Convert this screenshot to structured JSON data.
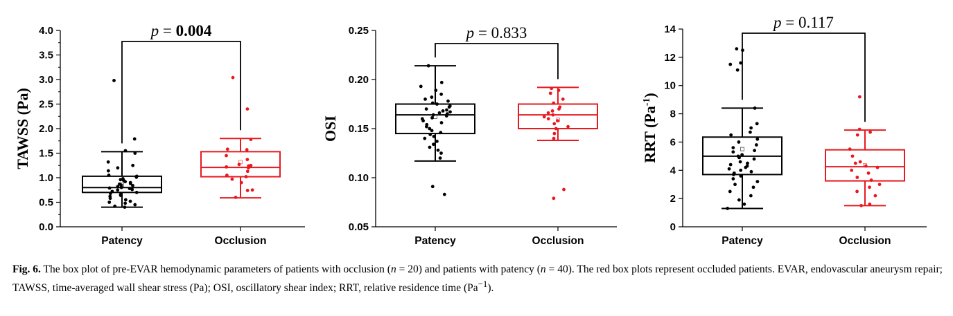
{
  "chart_data": [
    {
      "type": "box",
      "ylabel": "TAWSS (Pa)",
      "ylabel_base": "TAWSS (Pa)",
      "ylabel_sup": "",
      "ylabel_end": "",
      "ylim": [
        0.0,
        4.0
      ],
      "yticks": [
        0.0,
        0.5,
        1.0,
        1.5,
        2.0,
        2.5,
        3.0,
        3.5,
        4.0
      ],
      "ytick_labels": [
        "0.0",
        "0.5",
        "1.0",
        "1.5",
        "2.0",
        "2.5",
        "3.0",
        "3.5",
        "4.0"
      ],
      "minor_ticks": true,
      "categories": [
        "Patency",
        "Occlusion"
      ],
      "pvalue": {
        "prefix": "p",
        "eq": " = ",
        "value": "0.004",
        "bold": true
      },
      "boxes": [
        {
          "name": "Patency",
          "color": "#000000",
          "whisker_low": 0.4,
          "q1": 0.7,
          "median": 0.8,
          "q3": 1.03,
          "whisker_high": 1.53,
          "mean": 0.86,
          "points": [
            2.98,
            1.79,
            1.55,
            1.5,
            1.32,
            1.25,
            1.2,
            1.14,
            1.05,
            1.03,
            1.01,
            0.98,
            0.96,
            0.95,
            0.92,
            0.9,
            0.88,
            0.87,
            0.85,
            0.84,
            0.82,
            0.8,
            0.79,
            0.78,
            0.76,
            0.75,
            0.72,
            0.7,
            0.68,
            0.66,
            0.64,
            0.62,
            0.58,
            0.55,
            0.52,
            0.5,
            0.48,
            0.45,
            0.42,
            0.4
          ]
        },
        {
          "name": "Occlusion",
          "color": "#e8191f",
          "whisker_low": 0.59,
          "q1": 1.02,
          "median": 1.21,
          "q3": 1.53,
          "whisker_high": 1.8,
          "mean": 1.32,
          "points": [
            3.04,
            2.4,
            1.78,
            1.58,
            1.57,
            1.45,
            1.37,
            1.27,
            1.25,
            1.24,
            1.22,
            1.2,
            1.13,
            1.05,
            1.02,
            0.97,
            0.9,
            0.75,
            0.74,
            0.6
          ]
        }
      ]
    },
    {
      "type": "box",
      "ylabel": "OSI",
      "ylabel_base": "OSI",
      "ylabel_sup": "",
      "ylabel_end": "",
      "ylim": [
        0.05,
        0.25
      ],
      "yticks": [
        0.05,
        0.1,
        0.15,
        0.2,
        0.25
      ],
      "ytick_labels": [
        "0.05",
        "0.10",
        "0.15",
        "0.20",
        "0.25"
      ],
      "minor_ticks": false,
      "categories": [
        "Patency",
        "Occlusion"
      ],
      "pvalue": {
        "prefix": "p",
        "eq": " = ",
        "value": "0.833",
        "bold": false
      },
      "boxes": [
        {
          "name": "Patency",
          "color": "#000000",
          "whisker_low": 0.117,
          "q1": 0.145,
          "median": 0.164,
          "q3": 0.175,
          "whisker_high": 0.214,
          "mean": 0.162,
          "points": [
            0.214,
            0.197,
            0.193,
            0.189,
            0.185,
            0.182,
            0.18,
            0.178,
            0.176,
            0.175,
            0.173,
            0.172,
            0.17,
            0.169,
            0.168,
            0.167,
            0.166,
            0.165,
            0.164,
            0.163,
            0.161,
            0.16,
            0.158,
            0.156,
            0.154,
            0.152,
            0.15,
            0.148,
            0.146,
            0.144,
            0.142,
            0.14,
            0.137,
            0.134,
            0.131,
            0.128,
            0.125,
            0.12,
            0.091,
            0.083
          ]
        },
        {
          "name": "Occlusion",
          "color": "#e8191f",
          "whisker_low": 0.138,
          "q1": 0.15,
          "median": 0.164,
          "q3": 0.175,
          "whisker_high": 0.192,
          "mean": 0.159,
          "points": [
            0.191,
            0.189,
            0.186,
            0.18,
            0.176,
            0.172,
            0.17,
            0.168,
            0.166,
            0.164,
            0.162,
            0.16,
            0.158,
            0.155,
            0.152,
            0.15,
            0.145,
            0.14,
            0.088,
            0.079
          ]
        }
      ]
    },
    {
      "type": "box",
      "ylabel": "RRT (Pa-1)",
      "ylabel_base": "RRT (Pa",
      "ylabel_sup": "-1",
      "ylabel_end": ")",
      "ylim": [
        0,
        14
      ],
      "yticks": [
        0,
        2,
        4,
        6,
        8,
        10,
        12,
        14
      ],
      "ytick_labels": [
        "0",
        "2",
        "4",
        "6",
        "8",
        "10",
        "12",
        "14"
      ],
      "minor_ticks": false,
      "categories": [
        "Patency",
        "Occlusion"
      ],
      "pvalue": {
        "prefix": "p",
        "eq": " = ",
        "value": "0.117",
        "bold": false
      },
      "boxes": [
        {
          "name": "Patency",
          "color": "#000000",
          "whisker_low": 1.3,
          "q1": 3.7,
          "median": 5.0,
          "q3": 6.35,
          "whisker_high": 8.4,
          "mean": 5.5,
          "points": [
            12.6,
            12.5,
            11.6,
            11.5,
            11.1,
            8.4,
            7.3,
            7.0,
            6.7,
            6.5,
            6.2,
            6.0,
            5.8,
            5.6,
            5.4,
            5.3,
            5.1,
            5.0,
            4.9,
            4.8,
            4.6,
            4.5,
            4.4,
            4.3,
            4.2,
            4.1,
            4.0,
            3.9,
            3.8,
            3.7,
            3.6,
            3.4,
            3.2,
            3.0,
            2.8,
            2.5,
            2.2,
            1.9,
            1.6,
            1.3
          ]
        },
        {
          "name": "Occlusion",
          "color": "#e8191f",
          "whisker_low": 1.5,
          "q1": 3.25,
          "median": 4.25,
          "q3": 5.45,
          "whisker_high": 6.85,
          "mean": 4.35,
          "points": [
            9.2,
            6.9,
            6.7,
            6.5,
            5.5,
            5.0,
            4.6,
            4.5,
            4.3,
            4.2,
            4.0,
            3.8,
            3.5,
            3.3,
            3.0,
            2.8,
            2.5,
            2.2,
            1.6,
            1.5
          ]
        }
      ]
    }
  ],
  "caption": {
    "lead": "Fig. 6.",
    "p1": " The box plot of pre-EVAR hemodynamic parameters of patients with occlusion (",
    "n1_var": "n",
    "n1_val": " = 20) and patients with patency (",
    "n2_var": "n",
    "n2_val": " = 40). The red box plots represent occluded patients. EVAR, endovascular aneurysm repair; TAWSS, time-averaged wall shear stress (Pa); OSI, oscillatory shear index; RRT, relative residence time (Pa",
    "sup": "−1",
    "end": ")."
  }
}
